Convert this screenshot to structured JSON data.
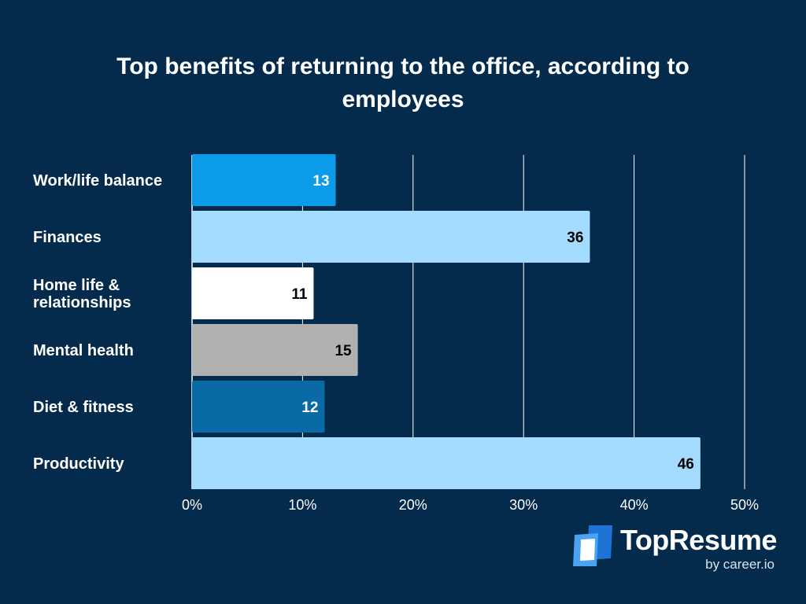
{
  "chart_data": {
    "type": "bar",
    "orientation": "horizontal",
    "title": "Top benefits of returning to the office, according to employees",
    "categories": [
      "Work/life balance",
      "Finances",
      "Home life & relationships",
      "Mental health",
      "Diet & fitness",
      "Productivity"
    ],
    "category_lines": [
      [
        "Work/life balance"
      ],
      [
        "Finances"
      ],
      [
        "Home life &",
        "relationships"
      ],
      [
        "Mental health"
      ],
      [
        "Diet & fitness"
      ],
      [
        "Productivity"
      ]
    ],
    "values": [
      13,
      36,
      11,
      15,
      12,
      46
    ],
    "value_labels": [
      "13",
      "36",
      "11",
      "15",
      "12",
      "46"
    ],
    "bar_colors": [
      "#0b9be8",
      "#a3dcff",
      "#ffffff",
      "#b1b1b1",
      "#0a6aa5",
      "#a3dcff"
    ],
    "value_label_colors": [
      "#ffffff",
      "#000000",
      "#000000",
      "#000000",
      "#ffffff",
      "#000000"
    ],
    "xlim": [
      0,
      50
    ],
    "xticks": [
      0,
      10,
      20,
      30,
      40,
      50
    ],
    "xtick_labels": [
      "0%",
      "10%",
      "20%",
      "30%",
      "40%",
      "50%"
    ],
    "xlabel": "",
    "ylabel": "",
    "grid": true,
    "legend": "none"
  },
  "branding": {
    "name": "TopResume",
    "tagline": "by career.io"
  },
  "colors": {
    "background": "#042b4c",
    "text": "#ffffff",
    "gridline": "#ffffff",
    "logo_dark": "#1e74d6",
    "logo_light": "#4aa3f0"
  }
}
